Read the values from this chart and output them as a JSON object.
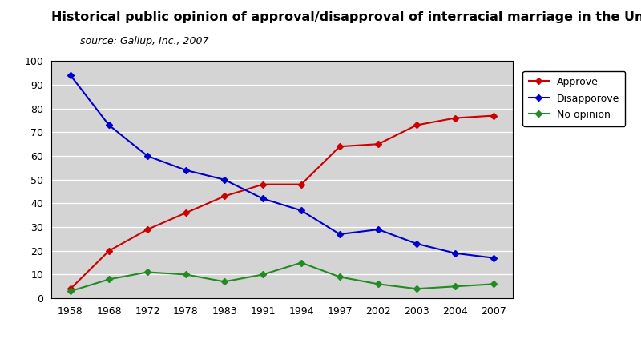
{
  "title": "Historical public opinion of approval/disapproval of interracial marriage in the United States",
  "subtitle": "source: Gallup, Inc., 2007",
  "years": [
    1958,
    1968,
    1972,
    1978,
    1983,
    1991,
    1994,
    1997,
    2002,
    2003,
    2004,
    2007
  ],
  "year_labels": [
    "1958",
    "1968",
    "1972",
    "1978",
    "1983",
    "1991",
    "1994",
    "1997",
    "2002",
    "2003",
    "2004",
    "2007"
  ],
  "approve": [
    4,
    20,
    29,
    36,
    43,
    48,
    48,
    64,
    65,
    73,
    76,
    77
  ],
  "disapprove": [
    94,
    73,
    60,
    54,
    50,
    42,
    37,
    27,
    29,
    23,
    19,
    17
  ],
  "no_opinion": [
    3,
    8,
    11,
    10,
    7,
    10,
    15,
    9,
    6,
    4,
    5,
    6
  ],
  "approve_color": "#cc0000",
  "disapprove_color": "#0000cc",
  "no_opinion_color": "#228b22",
  "bg_color": "#d4d4d4",
  "fig_bg_color": "#ffffff",
  "ylim": [
    0,
    100
  ],
  "yticks": [
    0,
    10,
    20,
    30,
    40,
    50,
    60,
    70,
    80,
    90,
    100
  ],
  "title_fontsize": 11.5,
  "subtitle_fontsize": 9,
  "legend_labels": [
    "Approve",
    "Disapporove",
    "No opinion"
  ],
  "marker": "D",
  "markersize": 4,
  "linewidth": 1.5,
  "grid_color": "#ffffff",
  "tick_fontsize": 9
}
